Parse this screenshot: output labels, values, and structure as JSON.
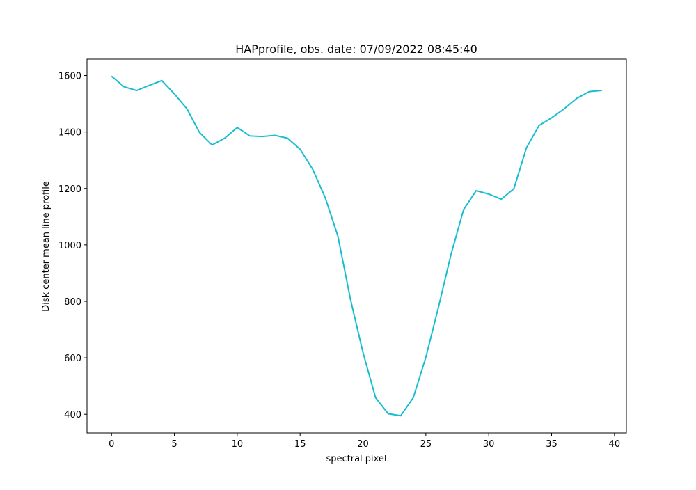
{
  "chart_data": {
    "type": "line",
    "title": "HAPprofile, obs. date: 07/09/2022 08:45:40",
    "xlabel": "spectral pixel",
    "ylabel": "Disk center mean line profile",
    "x": [
      0,
      1,
      2,
      3,
      4,
      5,
      6,
      7,
      8,
      9,
      10,
      11,
      12,
      13,
      14,
      15,
      16,
      17,
      18,
      19,
      20,
      21,
      22,
      23,
      24,
      25,
      26,
      27,
      28,
      29,
      30,
      31,
      32,
      33,
      34,
      35,
      36,
      37,
      38,
      39
    ],
    "values": [
      1598,
      1560,
      1547,
      1565,
      1582,
      1535,
      1482,
      1398,
      1354,
      1378,
      1416,
      1386,
      1384,
      1388,
      1378,
      1339,
      1268,
      1167,
      1032,
      808,
      619,
      459,
      402,
      395,
      459,
      602,
      779,
      966,
      1125,
      1192,
      1180,
      1162,
      1199,
      1344,
      1423,
      1450,
      1482,
      1519,
      1543,
      1547
    ],
    "color": "#17becf",
    "xlim": [
      -1.95,
      40.95
    ],
    "ylim": [
      334,
      1658
    ],
    "xticks": [
      0,
      5,
      10,
      15,
      20,
      25,
      30,
      35,
      40
    ],
    "yticks": [
      400,
      600,
      800,
      1000,
      1200,
      1400,
      1600
    ],
    "grid": false
  }
}
